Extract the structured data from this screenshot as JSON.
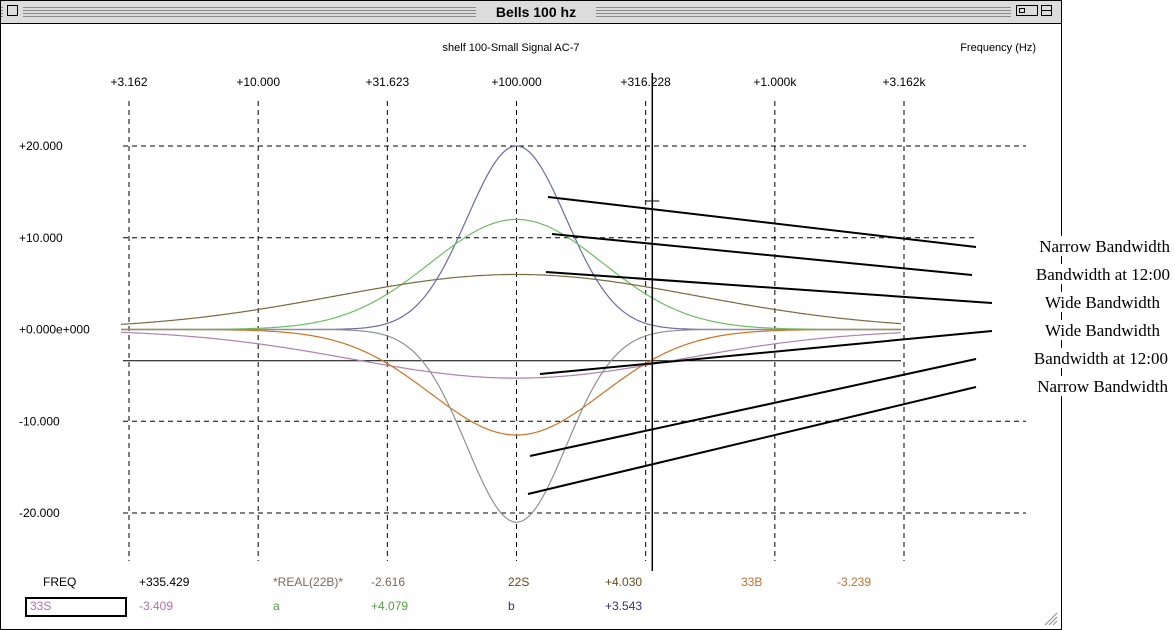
{
  "window": {
    "title": "Bells 100 hz",
    "subtitle": "shelf 100-Small Signal AC-7",
    "frequency_label": "Frequency  (Hz)"
  },
  "readouts": {
    "row1": [
      {
        "label": "FREQ",
        "color": "#000000"
      },
      {
        "label": "+335.429",
        "color": "#000000"
      },
      {
        "label": "*REAL(22B)*",
        "color": "#7a6a5a"
      },
      {
        "label": "-2.616",
        "color": "#7a6a5a"
      },
      {
        "label": "22S",
        "color": "#6b4a1a"
      },
      {
        "label": "+4.030",
        "color": "#6b4a1a"
      },
      {
        "label": "33B",
        "color": "#c07030"
      },
      {
        "label": "-3.239",
        "color": "#c07030"
      }
    ],
    "row2": [
      {
        "label": "33S",
        "color": "#b070b0"
      },
      {
        "label": "-3.409",
        "color": "#b070b0"
      },
      {
        "label": "a",
        "color": "#50a040"
      },
      {
        "label": "+4.079",
        "color": "#50a040"
      },
      {
        "label": "b",
        "color": "#303080"
      },
      {
        "label": "+3.543",
        "color": "#303080"
      }
    ]
  },
  "annotations": [
    "Narrow Bandwidth",
    "Bandwidth at 12:00",
    "Wide Bandwidth",
    "Wide Bandwidth",
    "Bandwidth at 12:00",
    "Narrow Bandwidth"
  ],
  "chart_data": {
    "type": "line",
    "title": "shelf 100-Small Signal AC-7",
    "xlabel": "Frequency  (Hz)",
    "ylabel": "",
    "x_scale": "log",
    "xlim": [
      2.2,
      5000
    ],
    "ylim": [
      -24,
      24
    ],
    "x_ticks": [
      3.162,
      10,
      31.623,
      100,
      316.228,
      1000,
      3162
    ],
    "x_tick_labels": [
      "+3.162",
      "+10.000",
      "+31.623",
      "+100.000",
      "+316.228",
      "+1.000k",
      "+3.162k"
    ],
    "y_ticks": [
      20,
      10,
      0,
      -10,
      -20
    ],
    "y_tick_labels": [
      "+20.000",
      "+10.000",
      "+0.000e+000",
      "-10.000",
      "-20.000"
    ],
    "grid": true,
    "cursor_x": 335.429,
    "reference_y": -3.4,
    "series": [
      {
        "color": "#6a6aa8",
        "center": 100,
        "gain": 20,
        "bandwidth_octaves": 1.5
      },
      {
        "color": "#6ac060",
        "center": 100,
        "gain": 12,
        "bandwidth_octaves": 2.6
      },
      {
        "color": "#7a6a40",
        "center": 100,
        "gain": 6,
        "bandwidth_octaves": 5.5
      },
      {
        "color": "#b080b0",
        "center": 100,
        "gain": -5.3,
        "bandwidth_octaves": 5.0
      },
      {
        "color": "#d07020",
        "center": 100,
        "gain": -11.5,
        "bandwidth_octaves": 2.6
      },
      {
        "color": "#909090",
        "center": 100,
        "gain": -21,
        "bandwidth_octaves": 1.5
      }
    ]
  }
}
